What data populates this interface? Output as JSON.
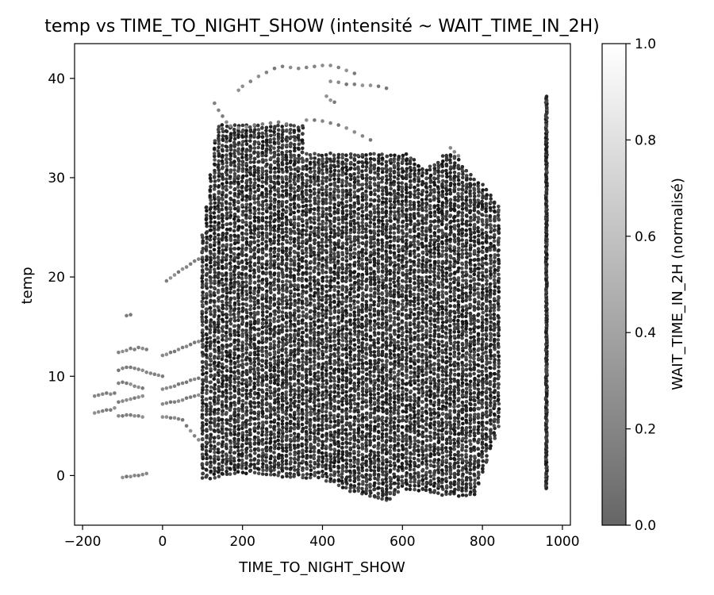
{
  "chart_data": {
    "type": "scatter",
    "title": "temp vs TIME_TO_NIGHT_SHOW (intensité ~ WAIT_TIME_IN_2H)",
    "xlabel": "TIME_TO_NIGHT_SHOW",
    "ylabel": "temp",
    "xlim": [
      -220,
      1020
    ],
    "ylim": [
      -5,
      43.5
    ],
    "x_ticks": [
      -200,
      0,
      200,
      400,
      600,
      800,
      1000
    ],
    "y_ticks": [
      0,
      10,
      20,
      30,
      40
    ],
    "grid": false,
    "colorbar": {
      "label": "WAIT_TIME_IN_2H (normalisé)",
      "range": [
        0,
        1
      ],
      "ticks": [
        0.0,
        0.2,
        0.4,
        0.6,
        0.8,
        1.0
      ],
      "tick_labels": [
        "0.0",
        "0.2",
        "0.4",
        "0.6",
        "0.8",
        "1.0"
      ],
      "colormap": "gray",
      "color_low": "#666666",
      "color_high": "#ffffff"
    },
    "series": [
      {
        "x_column_step": 10,
        "upper_envelope": [
          [
            -170,
            8.4
          ],
          [
            -110,
            12.5
          ],
          [
            -80,
            12.9
          ],
          [
            -40,
            12.9
          ],
          [
            0,
            12.3
          ],
          [
            40,
            13.0
          ],
          [
            80,
            13.5
          ],
          [
            100,
            24.5
          ],
          [
            120,
            30.5
          ],
          [
            140,
            37.5
          ],
          [
            180,
            39.5
          ],
          [
            220,
            40.0
          ],
          [
            280,
            41.2
          ],
          [
            350,
            41.2
          ],
          [
            420,
            41.3
          ],
          [
            480,
            40.5
          ],
          [
            560,
            39.4
          ],
          [
            600,
            33.0
          ],
          [
            660,
            31.0
          ],
          [
            720,
            33.0
          ],
          [
            780,
            30.0
          ],
          [
            800,
            29.5
          ],
          [
            840,
            27.5
          ]
        ],
        "lower_envelope": [
          [
            -170,
            6.2
          ],
          [
            -110,
            5.8
          ],
          [
            -40,
            5.8
          ],
          [
            0,
            5.8
          ],
          [
            40,
            4.2
          ],
          [
            80,
            3.5
          ],
          [
            100,
            -0.3
          ],
          [
            200,
            0.4
          ],
          [
            300,
            0.0
          ],
          [
            400,
            -0.2
          ],
          [
            460,
            -1.3
          ],
          [
            560,
            -2.6
          ],
          [
            600,
            -1.2
          ],
          [
            700,
            -1.8
          ],
          [
            780,
            -2.0
          ],
          [
            800,
            0.2
          ],
          [
            840,
            5.0
          ]
        ],
        "points": [
          [
            -170,
            8.0
          ],
          [
            -160,
            8.1
          ],
          [
            -150,
            8.2
          ],
          [
            -140,
            8.3
          ],
          [
            -130,
            8.2
          ],
          [
            -120,
            8.3
          ],
          [
            -170,
            6.3
          ],
          [
            -160,
            6.4
          ],
          [
            -150,
            6.5
          ],
          [
            -140,
            6.6
          ],
          [
            -130,
            6.6
          ],
          [
            -120,
            6.8
          ],
          [
            -110,
            12.4
          ],
          [
            -100,
            12.5
          ],
          [
            -90,
            12.6
          ],
          [
            -80,
            12.8
          ],
          [
            -70,
            12.7
          ],
          [
            -60,
            12.9
          ],
          [
            -50,
            12.8
          ],
          [
            -40,
            12.7
          ],
          [
            -110,
            10.6
          ],
          [
            -100,
            10.8
          ],
          [
            -90,
            10.9
          ],
          [
            -80,
            10.9
          ],
          [
            -70,
            10.8
          ],
          [
            -60,
            10.7
          ],
          [
            -50,
            10.6
          ],
          [
            -110,
            9.3
          ],
          [
            -100,
            9.4
          ],
          [
            -90,
            9.3
          ],
          [
            -80,
            9.2
          ],
          [
            -70,
            9.0
          ],
          [
            -60,
            8.9
          ],
          [
            -50,
            8.8
          ],
          [
            -110,
            7.4
          ],
          [
            -100,
            7.5
          ],
          [
            -90,
            7.6
          ],
          [
            -80,
            7.7
          ],
          [
            -70,
            7.8
          ],
          [
            -60,
            7.9
          ],
          [
            -50,
            8.0
          ],
          [
            -110,
            6.0
          ],
          [
            -100,
            6.0
          ],
          [
            -90,
            6.1
          ],
          [
            -80,
            6.1
          ],
          [
            -70,
            6.0
          ],
          [
            -60,
            6.0
          ],
          [
            -50,
            5.9
          ],
          [
            -100,
            -0.2
          ],
          [
            -90,
            -0.1
          ],
          [
            -80,
            -0.1
          ],
          [
            -70,
            0.0
          ],
          [
            -60,
            0.0
          ],
          [
            -50,
            0.1
          ],
          [
            -40,
            0.2
          ],
          [
            -90,
            16.1
          ],
          [
            -80,
            16.2
          ],
          [
            -40,
            10.4
          ],
          [
            -30,
            10.3
          ],
          [
            -20,
            10.2
          ],
          [
            -10,
            10.1
          ],
          [
            0,
            10.0
          ],
          [
            0,
            12.1
          ],
          [
            10,
            12.2
          ],
          [
            20,
            12.4
          ],
          [
            30,
            12.5
          ],
          [
            40,
            12.7
          ],
          [
            50,
            12.9
          ],
          [
            60,
            13.0
          ],
          [
            70,
            13.2
          ],
          [
            80,
            13.4
          ],
          [
            90,
            13.5
          ],
          [
            10,
            19.6
          ],
          [
            20,
            19.9
          ],
          [
            30,
            20.2
          ],
          [
            40,
            20.5
          ],
          [
            50,
            20.8
          ],
          [
            60,
            21.0
          ],
          [
            70,
            21.3
          ],
          [
            80,
            21.6
          ],
          [
            90,
            21.8
          ],
          [
            0,
            8.7
          ],
          [
            10,
            8.8
          ],
          [
            20,
            8.9
          ],
          [
            30,
            9.0
          ],
          [
            40,
            9.2
          ],
          [
            50,
            9.3
          ],
          [
            60,
            9.4
          ],
          [
            70,
            9.6
          ],
          [
            80,
            9.7
          ],
          [
            90,
            9.8
          ],
          [
            0,
            7.2
          ],
          [
            10,
            7.3
          ],
          [
            20,
            7.4
          ],
          [
            30,
            7.4
          ],
          [
            40,
            7.5
          ],
          [
            50,
            7.6
          ],
          [
            60,
            7.8
          ],
          [
            70,
            7.9
          ],
          [
            80,
            8.0
          ],
          [
            90,
            8.1
          ],
          [
            0,
            5.9
          ],
          [
            10,
            5.9
          ],
          [
            20,
            5.8
          ],
          [
            30,
            5.8
          ],
          [
            40,
            5.7
          ],
          [
            50,
            5.6
          ],
          [
            60,
            5.0
          ],
          [
            70,
            4.5
          ],
          [
            80,
            4.0
          ],
          [
            90,
            3.6
          ],
          [
            300,
            41.2
          ],
          [
            320,
            41.1
          ],
          [
            340,
            41.0
          ],
          [
            360,
            41.1
          ],
          [
            380,
            41.2
          ],
          [
            400,
            41.3
          ],
          [
            420,
            41.3
          ],
          [
            440,
            41.1
          ],
          [
            460,
            40.8
          ],
          [
            480,
            40.5
          ],
          [
            190,
            38.8
          ],
          [
            200,
            39.2
          ],
          [
            220,
            39.7
          ],
          [
            240,
            40.2
          ],
          [
            260,
            40.6
          ],
          [
            280,
            41.0
          ],
          [
            420,
            39.7
          ],
          [
            440,
            39.6
          ],
          [
            460,
            39.4
          ],
          [
            480,
            39.4
          ],
          [
            500,
            39.3
          ],
          [
            520,
            39.3
          ],
          [
            540,
            39.2
          ],
          [
            560,
            39.0
          ],
          [
            410,
            38.2
          ],
          [
            420,
            37.8
          ],
          [
            430,
            37.6
          ],
          [
            130,
            37.5
          ],
          [
            140,
            36.8
          ],
          [
            150,
            36.2
          ],
          [
            160,
            35.6
          ],
          [
            360,
            35.8
          ],
          [
            380,
            35.8
          ],
          [
            400,
            35.7
          ],
          [
            420,
            35.5
          ],
          [
            440,
            35.3
          ],
          [
            460,
            35.0
          ],
          [
            480,
            34.6
          ],
          [
            500,
            34.2
          ],
          [
            520,
            33.8
          ],
          [
            720,
            33.0
          ],
          [
            730,
            32.6
          ],
          [
            740,
            32.2
          ],
          [
            170,
            35.2
          ],
          [
            190,
            35.0
          ],
          [
            210,
            35.1
          ],
          [
            230,
            35.3
          ],
          [
            250,
            35.4
          ],
          [
            270,
            35.5
          ],
          [
            290,
            35.6
          ],
          [
            310,
            35.4
          ]
        ],
        "color_value_range": [
          0.0,
          0.35
        ]
      },
      {
        "name": "",
        "x_constant": 960,
        "y_range": [
          -1.3,
          38.2
        ],
        "color_value_range": [
          0.0,
          0.3
        ]
      }
    ]
  }
}
